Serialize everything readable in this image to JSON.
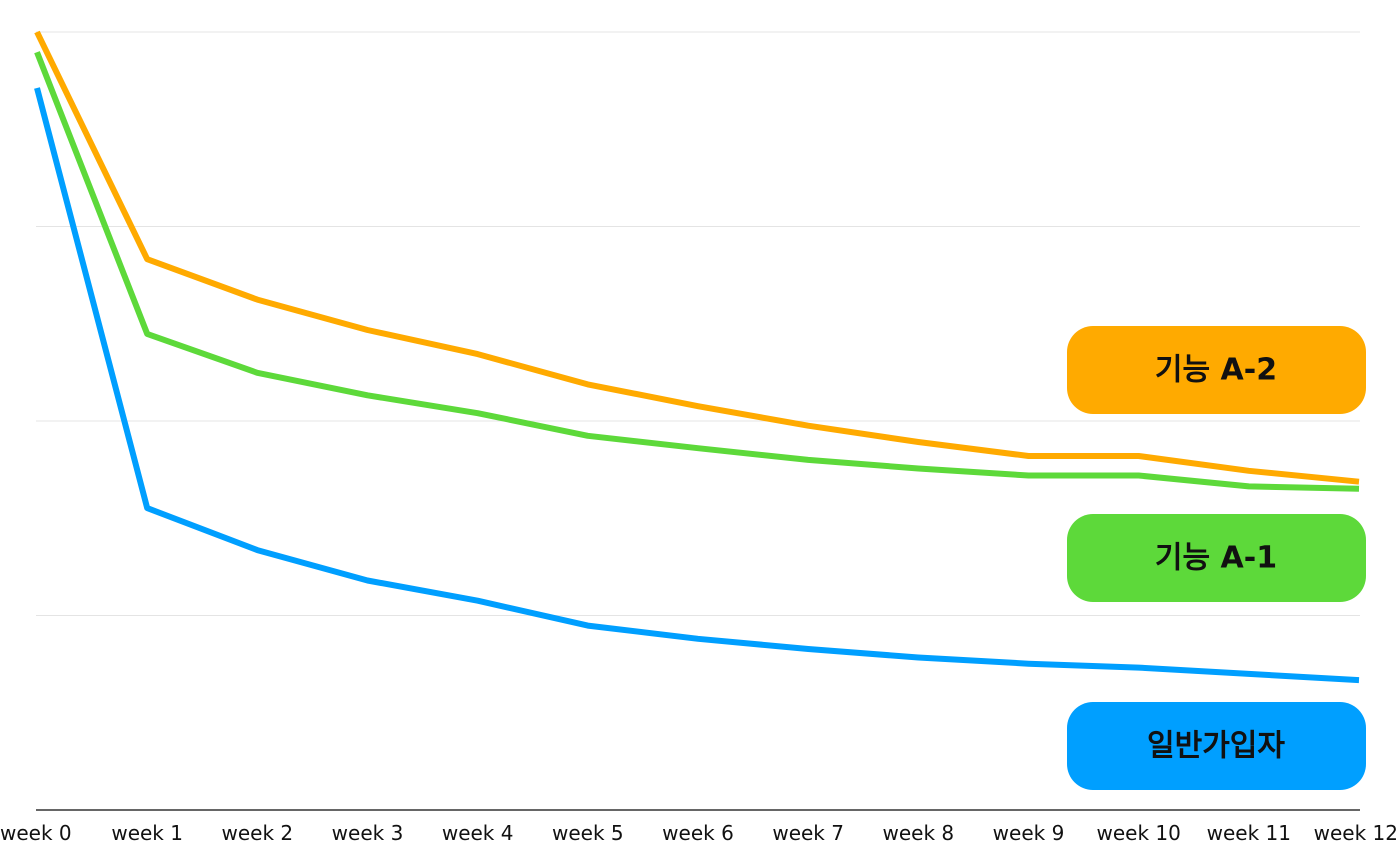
{
  "chart_data": {
    "type": "line",
    "title": "",
    "xlabel": "",
    "ylabel": "",
    "categories": [
      "week 0",
      "week 1",
      "week 2",
      "week 3",
      "week 4",
      "week 5",
      "week 6",
      "week 7",
      "week 8",
      "week 9",
      "week 10",
      "week 11",
      "week 12"
    ],
    "ylim": [
      0,
      100
    ],
    "y_gridlines": [
      25,
      50,
      75,
      100
    ],
    "y_tick_labels_shown": false,
    "grid": true,
    "legend": "right",
    "series": [
      {
        "name": "기능 A-2",
        "color": "#FFAA00",
        "values": [
          100,
          70.8,
          65.6,
          61.7,
          58.6,
          54.7,
          51.9,
          49.4,
          47.3,
          45.5,
          45.5,
          43.6,
          42.2
        ]
      },
      {
        "name": "기능 A-1",
        "color": "#5DD93A",
        "values": [
          97.4,
          61.2,
          56.2,
          53.3,
          51.0,
          48.1,
          46.5,
          45.0,
          43.9,
          43.0,
          43.0,
          41.6,
          41.3
        ]
      },
      {
        "name": "일반가입자",
        "color": "#009FFF",
        "values": [
          92.8,
          38.8,
          33.4,
          29.5,
          26.9,
          23.7,
          22.0,
          20.7,
          19.6,
          18.8,
          18.3,
          17.5,
          16.7
        ]
      }
    ]
  }
}
